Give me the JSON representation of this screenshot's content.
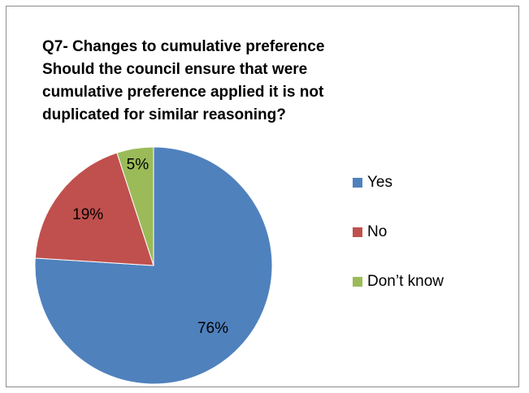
{
  "chart_data": {
    "type": "pie",
    "title_lines": [
      "Q7- Changes to cumulative preference",
      "Should the council ensure that were",
      "cumulative preference applied it is not",
      "duplicated for similar reasoning?"
    ],
    "categories": [
      "Yes",
      "No",
      "Don’t know"
    ],
    "values": [
      76,
      19,
      5
    ],
    "value_labels": [
      "76%",
      "19%",
      "5%"
    ],
    "colors": [
      "#4f81bd",
      "#c0504d",
      "#9bbb59"
    ],
    "legend_position": "right",
    "start_angle": "12 o'clock",
    "direction": "clockwise"
  }
}
